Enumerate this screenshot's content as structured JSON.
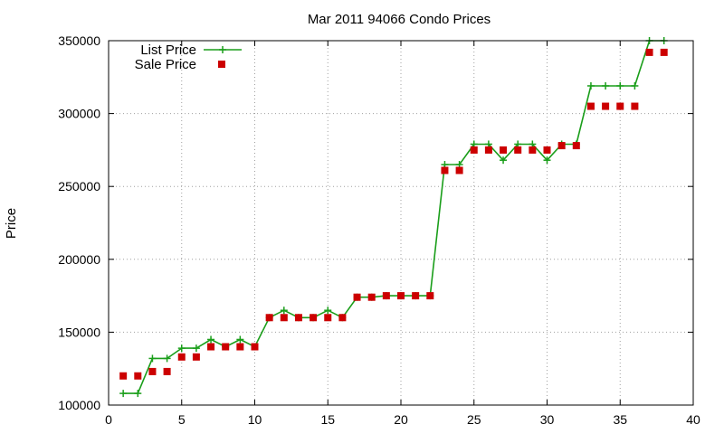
{
  "chart_data": {
    "type": "line",
    "title": "Mar 2011 94066 Condo Prices",
    "xlabel": "",
    "ylabel": "Price",
    "xlim": [
      0,
      40
    ],
    "ylim": [
      100000,
      350000
    ],
    "xticks": [
      0,
      5,
      10,
      15,
      20,
      25,
      30,
      35,
      40
    ],
    "yticks": [
      100000,
      150000,
      200000,
      250000,
      300000,
      350000
    ],
    "grid": true,
    "legend_position": "top-left",
    "series": [
      {
        "name": "List Price",
        "style": "line-with-plus-markers",
        "color": "#1a9e1a",
        "x": [
          1,
          2,
          3,
          4,
          5,
          6,
          7,
          8,
          9,
          10,
          11,
          12,
          13,
          14,
          15,
          16,
          17,
          18,
          19,
          20,
          21,
          22,
          23,
          24,
          25,
          26,
          27,
          28,
          29,
          30,
          31,
          32,
          33,
          34,
          35,
          36,
          37,
          38
        ],
        "values": [
          108000,
          108000,
          132000,
          132000,
          139000,
          139000,
          145000,
          140000,
          145000,
          140000,
          160000,
          165000,
          160000,
          160000,
          165000,
          160000,
          174000,
          174000,
          175000,
          175000,
          175000,
          175000,
          265000,
          265000,
          279000,
          279000,
          268000,
          279000,
          279000,
          268000,
          279000,
          279000,
          319000,
          319000,
          319000,
          319000,
          350000,
          350000
        ]
      },
      {
        "name": "Sale Price",
        "style": "square-markers",
        "color": "#cc0000",
        "x": [
          1,
          2,
          3,
          4,
          5,
          6,
          7,
          8,
          9,
          10,
          11,
          12,
          13,
          14,
          15,
          16,
          17,
          18,
          19,
          20,
          21,
          22,
          23,
          24,
          25,
          26,
          27,
          28,
          29,
          30,
          31,
          32,
          33,
          34,
          35,
          36,
          37,
          38
        ],
        "values": [
          120000,
          120000,
          123000,
          123000,
          133000,
          133000,
          140000,
          140000,
          140000,
          140000,
          160000,
          160000,
          160000,
          160000,
          160000,
          160000,
          174000,
          174000,
          175000,
          175000,
          175000,
          175000,
          261000,
          261000,
          275000,
          275000,
          275000,
          275000,
          275000,
          275000,
          278000,
          278000,
          305000,
          305000,
          305000,
          305000,
          342000,
          342000
        ]
      }
    ]
  }
}
